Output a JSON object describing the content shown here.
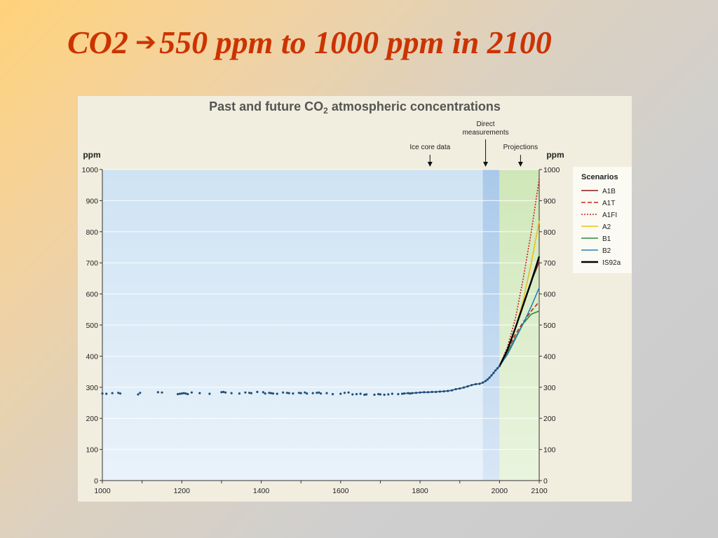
{
  "slide": {
    "title_left": "CO2",
    "title_right": "550 ppm to 1000 ppm in 2100",
    "arrow_icon": "right-arrow-icon"
  },
  "chart_data": {
    "type": "line",
    "title": "Past and future CO",
    "title_sub": "2",
    "title_tail": " atmospheric concentrations",
    "ylabel_left": "ppm",
    "ylabel_right": "ppm",
    "xlim": [
      1000,
      2100
    ],
    "ylim": [
      0,
      1000
    ],
    "x_ticks": [
      1000,
      1200,
      1400,
      1600,
      1800,
      2000,
      2100
    ],
    "y_ticks": [
      0,
      100,
      200,
      300,
      400,
      500,
      600,
      700,
      800,
      900,
      1000
    ],
    "grid": true,
    "regions": [
      {
        "label": "Ice core data",
        "x0": 1000,
        "x1": 1958,
        "color": "#cfe3f4"
      },
      {
        "label": "Direct measurements",
        "x0": 1958,
        "x1": 2000,
        "color": "#a9c9ea"
      },
      {
        "label": "Projections",
        "x0": 2000,
        "x1": 2100,
        "color": "#cfe7b8"
      }
    ],
    "annotations": [
      {
        "text": "Ice core data",
        "x": 1825
      },
      {
        "text": "Direct measurements",
        "line1": "Direct",
        "line2": "measurements",
        "x": 1965
      },
      {
        "text": "Projections",
        "x": 2053
      }
    ],
    "historical": {
      "name": "Ice core / direct measurements",
      "color": "#1f4e79",
      "x": [
        1000,
        1010,
        1025,
        1040,
        1045,
        1090,
        1095,
        1140,
        1150,
        1190,
        1195,
        1200,
        1205,
        1210,
        1215,
        1225,
        1245,
        1270,
        1300,
        1305,
        1310,
        1325,
        1345,
        1360,
        1370,
        1375,
        1390,
        1405,
        1410,
        1420,
        1425,
        1430,
        1440,
        1455,
        1465,
        1470,
        1480,
        1495,
        1500,
        1510,
        1515,
        1530,
        1540,
        1545,
        1550,
        1565,
        1580,
        1600,
        1610,
        1620,
        1630,
        1640,
        1650,
        1660,
        1665,
        1685,
        1695,
        1700,
        1710,
        1720,
        1730,
        1745,
        1755,
        1760,
        1770,
        1775,
        1780,
        1790,
        1800,
        1810,
        1820,
        1830,
        1840,
        1850,
        1860,
        1870,
        1880,
        1890,
        1900,
        1910,
        1920,
        1930,
        1940,
        1950,
        1958,
        1965,
        1970,
        1975,
        1980,
        1985,
        1990,
        1995,
        2000
      ],
      "y": [
        280,
        279,
        281,
        282,
        280,
        277,
        282,
        284,
        283,
        278,
        279,
        280,
        281,
        280,
        278,
        283,
        281,
        279,
        284,
        285,
        283,
        281,
        280,
        283,
        282,
        281,
        285,
        284,
        280,
        282,
        281,
        280,
        279,
        283,
        282,
        281,
        280,
        282,
        281,
        283,
        280,
        281,
        282,
        283,
        280,
        281,
        278,
        279,
        282,
        283,
        277,
        278,
        279,
        276,
        277,
        276,
        278,
        277,
        276,
        277,
        279,
        278,
        279,
        280,
        281,
        280,
        281,
        282,
        283,
        284,
        284,
        285,
        285,
        286,
        287,
        288,
        290,
        294,
        296,
        299,
        303,
        307,
        310,
        311,
        315,
        320,
        325,
        331,
        338,
        346,
        354,
        361,
        368
      ]
    },
    "legend": {
      "title": "Scenarios",
      "position": "right"
    },
    "series": [
      {
        "name": "A1B",
        "color": "#8b1a1a",
        "dash": "",
        "x": [
          2000,
          2020,
          2040,
          2060,
          2080,
          2100
        ],
        "y": [
          368,
          420,
          490,
          570,
          640,
          703
        ]
      },
      {
        "name": "A1T",
        "color": "#cc2222",
        "dash": "6,3",
        "x": [
          2000,
          2020,
          2040,
          2060,
          2080,
          2100
        ],
        "y": [
          368,
          418,
          470,
          510,
          545,
          575
        ]
      },
      {
        "name": "A1FI",
        "color": "#cc2222",
        "dash": "2,2",
        "x": [
          2000,
          2020,
          2040,
          2060,
          2080,
          2100
        ],
        "y": [
          368,
          430,
          520,
          650,
          800,
          970
        ]
      },
      {
        "name": "A2",
        "color": "#e8c21a",
        "dash": "",
        "x": [
          2000,
          2020,
          2040,
          2060,
          2080,
          2100
        ],
        "y": [
          368,
          415,
          490,
          580,
          700,
          835
        ]
      },
      {
        "name": "B1",
        "color": "#2e8b3a",
        "dash": "",
        "x": [
          2000,
          2020,
          2040,
          2060,
          2080,
          2100
        ],
        "y": [
          368,
          410,
          460,
          505,
          535,
          545
        ]
      },
      {
        "name": "B2",
        "color": "#2a7fb8",
        "dash": "",
        "x": [
          2000,
          2020,
          2040,
          2060,
          2080,
          2100
        ],
        "y": [
          368,
          405,
          455,
          505,
          560,
          620
        ]
      },
      {
        "name": "IS92a",
        "color": "#000000",
        "dash": "",
        "width": 2.4,
        "x": [
          2000,
          2020,
          2040,
          2060,
          2080,
          2100
        ],
        "y": [
          368,
          420,
          490,
          565,
          640,
          720
        ]
      }
    ]
  }
}
